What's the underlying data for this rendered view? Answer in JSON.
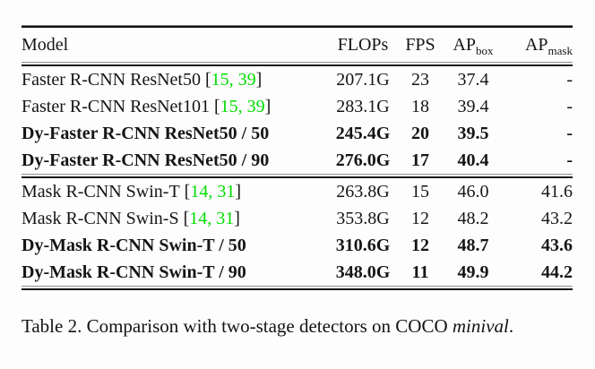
{
  "colors": {
    "citation_green": "#00dd00",
    "text": "#151515",
    "rule_dark": "#161616",
    "rule_light": "#8f8f8f",
    "background": "#fdfdfd"
  },
  "symbols": {
    "bracket_open": "[",
    "bracket_close": "]"
  },
  "header": {
    "model": "Model",
    "flops": "FLOPs",
    "fps": "FPS",
    "ap_box_main": "AP",
    "ap_box_sub": "box",
    "ap_mask_main": "AP",
    "ap_mask_sub": "mask"
  },
  "rows": [
    {
      "model": "Faster R-CNN ResNet50",
      "cite": "15, 39",
      "flops": "207.1G",
      "fps": "23",
      "ap_box": "37.4",
      "ap_mask": "-",
      "bold": false,
      "group": 1
    },
    {
      "model": "Faster R-CNN ResNet101",
      "cite": "15, 39",
      "flops": "283.1G",
      "fps": "18",
      "ap_box": "39.4",
      "ap_mask": "-",
      "bold": false,
      "group": 1
    },
    {
      "model": "Dy-Faster R-CNN ResNet50 / 50",
      "cite": null,
      "flops": "245.4G",
      "fps": "20",
      "ap_box": "39.5",
      "ap_mask": "-",
      "bold": true,
      "group": 1
    },
    {
      "model": "Dy-Faster R-CNN ResNet50 / 90",
      "cite": null,
      "flops": "276.0G",
      "fps": "17",
      "ap_box": "40.4",
      "ap_mask": "-",
      "bold": true,
      "group": 1
    },
    {
      "model": "Mask R-CNN Swin-T",
      "cite": "14, 31",
      "flops": "263.8G",
      "fps": "15",
      "ap_box": "46.0",
      "ap_mask": "41.6",
      "bold": false,
      "group": 2
    },
    {
      "model": "Mask R-CNN Swin-S",
      "cite": "14, 31",
      "flops": "353.8G",
      "fps": "12",
      "ap_box": "48.2",
      "ap_mask": "43.2",
      "bold": false,
      "group": 2
    },
    {
      "model": "Dy-Mask R-CNN Swin-T / 50",
      "cite": null,
      "flops": "310.6G",
      "fps": "12",
      "ap_box": "48.7",
      "ap_mask": "43.6",
      "bold": true,
      "group": 2
    },
    {
      "model": "Dy-Mask R-CNN Swin-T / 90",
      "cite": null,
      "flops": "348.0G",
      "fps": "11",
      "ap_box": "49.9",
      "ap_mask": "44.2",
      "bold": true,
      "group": 2
    }
  ],
  "caption": {
    "prefix": "Table 2. Comparison with two-stage detectors on COCO ",
    "italic": "minival",
    "suffix": "."
  }
}
